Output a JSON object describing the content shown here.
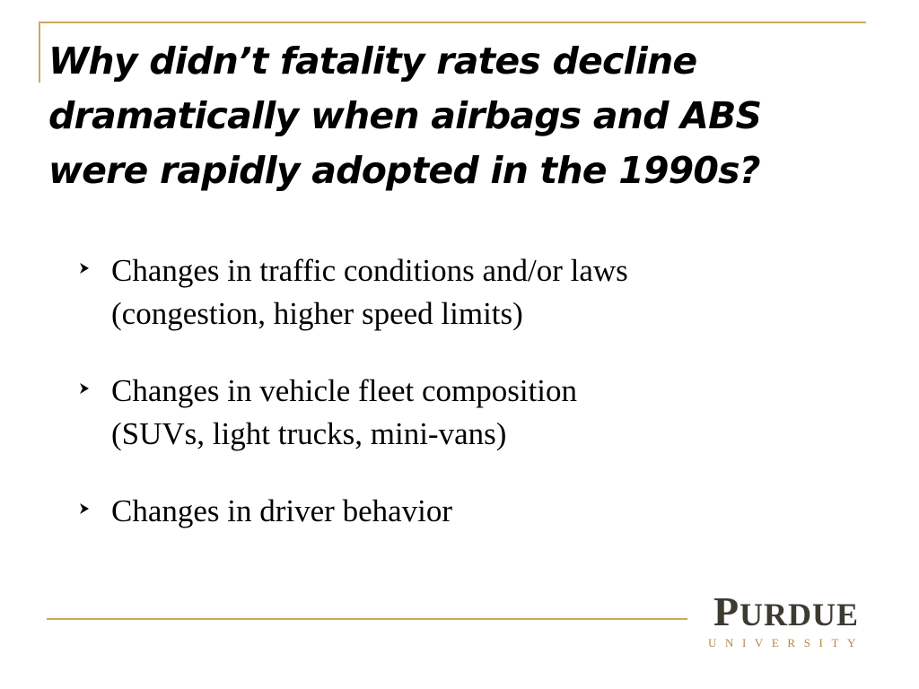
{
  "slide": {
    "title": "Why didn’t fatality rates decline dramatically when airbags and ABS were rapidly adopted in the 1990s?",
    "bullets": [
      {
        "line1": "Changes in traffic conditions and/or laws",
        "line2": "(congestion, higher speed limits)"
      },
      {
        "line1": "Changes in vehicle fleet composition",
        "line2": "(SUVs, light trucks, mini-vans)"
      },
      {
        "line1": "Changes in driver behavior",
        "line2": ""
      }
    ],
    "bullet_icon": "arrow-bullet-icon"
  },
  "logo": {
    "name_initial": "P",
    "name_rest": "URDUE",
    "subtitle": "UNIVERSITY"
  },
  "colors": {
    "accent_gold": "#c9a95c",
    "logo_text": "#3d3a30",
    "logo_gold": "#b08d3e"
  }
}
